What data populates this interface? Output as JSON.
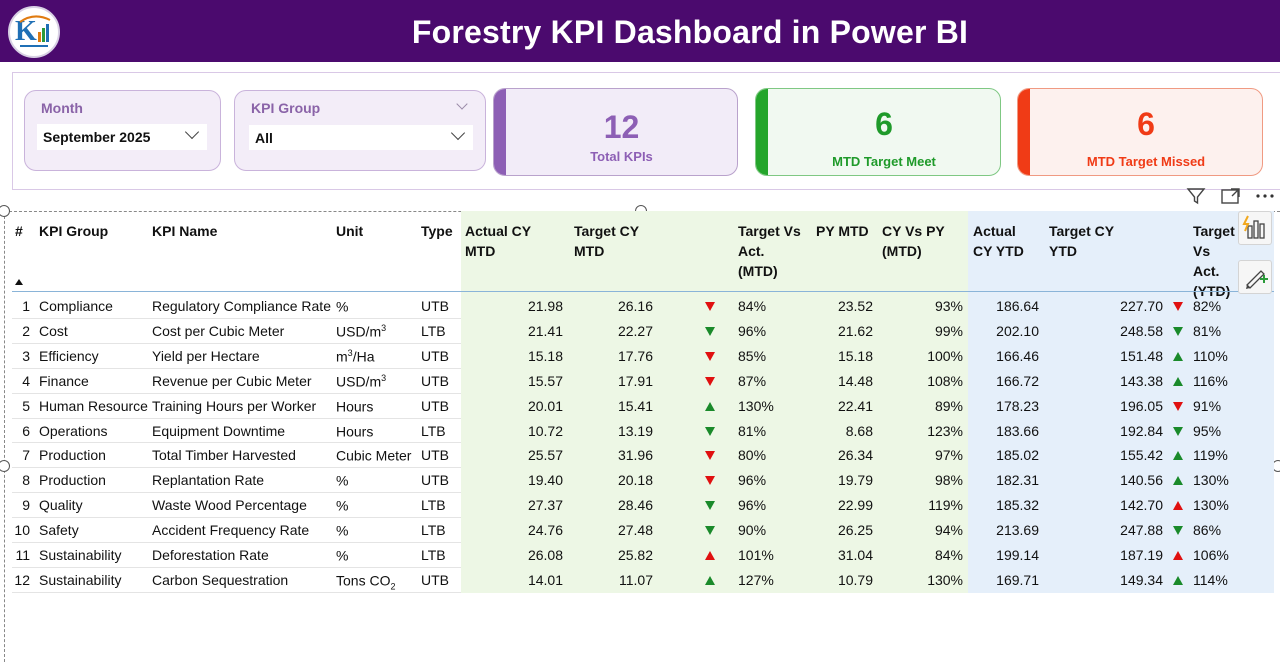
{
  "header": {
    "title": "Forestry KPI Dashboard in Power BI"
  },
  "slicers": {
    "month": {
      "label": "Month",
      "value": "September 2025"
    },
    "kpi_group": {
      "label": "KPI Group",
      "value": "All"
    }
  },
  "cards": [
    {
      "value": "12",
      "caption": "Total KPIs",
      "color": "#8d5fb5"
    },
    {
      "value": "6",
      "caption": "MTD Target Meet",
      "color": "#24a52b"
    },
    {
      "value": "6",
      "caption": "MTD Target Missed",
      "color": "#f03b16"
    }
  ],
  "icons": [
    "filter-icon",
    "focus-mode-icon",
    "more-options-icon",
    "visualization-icon",
    "format-brush-icon",
    "sort-ascending-icon"
  ],
  "table": {
    "columns": {
      "num": "#",
      "group": "KPI Group",
      "name": "KPI Name",
      "unit": "Unit",
      "type": "Type",
      "act_mtd": [
        "Actual CY",
        "MTD"
      ],
      "tgt_mtd": [
        "Target CY",
        "MTD"
      ],
      "tva_mtd": [
        "Target Vs",
        "Act.",
        "(MTD)"
      ],
      "py_mtd": "PY MTD",
      "cvp_mtd": [
        "CY Vs PY",
        "(MTD)"
      ],
      "act_ytd": [
        "Actual",
        "CY YTD"
      ],
      "tgt_ytd": [
        "Target CY",
        "YTD"
      ],
      "tva_ytd": [
        "Target",
        "Vs Act.",
        "(YTD)"
      ]
    },
    "rows": [
      {
        "num": "1",
        "group": "Compliance",
        "name": "Regulatory Compliance Rate",
        "unit": "%",
        "unit_sup": "",
        "unit_sub": "",
        "unit_tail": "",
        "type": "UTB",
        "act_mtd": "21.98",
        "tgt_mtd": "26.16",
        "mtd_dir": "down-red",
        "tva_mtd": "84%",
        "py_mtd": "23.52",
        "cvp_mtd": "93%",
        "act_ytd": "186.64",
        "tgt_ytd": "227.70",
        "ytd_dir": "down-red",
        "tva_ytd": "82%"
      },
      {
        "num": "2",
        "group": "Cost",
        "name": "Cost per Cubic Meter",
        "unit": "USD/m",
        "unit_sup": "3",
        "unit_sub": "",
        "unit_tail": "",
        "type": "LTB",
        "act_mtd": "21.41",
        "tgt_mtd": "22.27",
        "mtd_dir": "down-green",
        "tva_mtd": "96%",
        "py_mtd": "21.62",
        "cvp_mtd": "99%",
        "act_ytd": "202.10",
        "tgt_ytd": "248.58",
        "ytd_dir": "down-green",
        "tva_ytd": "81%"
      },
      {
        "num": "3",
        "group": "Efficiency",
        "name": "Yield per Hectare",
        "unit": "m",
        "unit_sup": "3",
        "unit_sub": "",
        "unit_tail": "/Ha",
        "type": "UTB",
        "act_mtd": "15.18",
        "tgt_mtd": "17.76",
        "mtd_dir": "down-red",
        "tva_mtd": "85%",
        "py_mtd": "15.18",
        "cvp_mtd": "100%",
        "act_ytd": "166.46",
        "tgt_ytd": "151.48",
        "ytd_dir": "up",
        "tva_ytd": "110%"
      },
      {
        "num": "4",
        "group": "Finance",
        "name": "Revenue per Cubic Meter",
        "unit": "USD/m",
        "unit_sup": "3",
        "unit_sub": "",
        "unit_tail": "",
        "type": "UTB",
        "act_mtd": "15.57",
        "tgt_mtd": "17.91",
        "mtd_dir": "down-red",
        "tva_mtd": "87%",
        "py_mtd": "14.48",
        "cvp_mtd": "108%",
        "act_ytd": "166.72",
        "tgt_ytd": "143.38",
        "ytd_dir": "up",
        "tva_ytd": "116%"
      },
      {
        "num": "5",
        "group": "Human Resource",
        "name": "Training Hours per Worker",
        "unit": "Hours",
        "unit_sup": "",
        "unit_sub": "",
        "unit_tail": "",
        "type": "UTB",
        "act_mtd": "20.01",
        "tgt_mtd": "15.41",
        "mtd_dir": "up",
        "tva_mtd": "130%",
        "py_mtd": "22.41",
        "cvp_mtd": "89%",
        "act_ytd": "178.23",
        "tgt_ytd": "196.05",
        "ytd_dir": "down-red",
        "tva_ytd": "91%"
      },
      {
        "num": "6",
        "group": "Operations",
        "name": "Equipment Downtime",
        "unit": "Hours",
        "unit_sup": "",
        "unit_sub": "",
        "unit_tail": "",
        "type": "LTB",
        "act_mtd": "10.72",
        "tgt_mtd": "13.19",
        "mtd_dir": "down-green",
        "tva_mtd": "81%",
        "py_mtd": "8.68",
        "cvp_mtd": "123%",
        "act_ytd": "183.66",
        "tgt_ytd": "192.84",
        "ytd_dir": "down-green",
        "tva_ytd": "95%"
      },
      {
        "num": "7",
        "group": "Production",
        "name": "Total Timber Harvested",
        "unit": "Cubic Meter",
        "unit_sup": "",
        "unit_sub": "",
        "unit_tail": "",
        "type": "UTB",
        "act_mtd": "25.57",
        "tgt_mtd": "31.96",
        "mtd_dir": "down-red",
        "tva_mtd": "80%",
        "py_mtd": "26.34",
        "cvp_mtd": "97%",
        "act_ytd": "185.02",
        "tgt_ytd": "155.42",
        "ytd_dir": "up",
        "tva_ytd": "119%"
      },
      {
        "num": "8",
        "group": "Production",
        "name": "Replantation Rate",
        "unit": "%",
        "unit_sup": "",
        "unit_sub": "",
        "unit_tail": "",
        "type": "UTB",
        "act_mtd": "19.40",
        "tgt_mtd": "20.18",
        "mtd_dir": "down-red",
        "tva_mtd": "96%",
        "py_mtd": "19.79",
        "cvp_mtd": "98%",
        "act_ytd": "182.31",
        "tgt_ytd": "140.56",
        "ytd_dir": "up",
        "tva_ytd": "130%"
      },
      {
        "num": "9",
        "group": "Quality",
        "name": "Waste Wood Percentage",
        "unit": "%",
        "unit_sup": "",
        "unit_sub": "",
        "unit_tail": "",
        "type": "LTB",
        "act_mtd": "27.37",
        "tgt_mtd": "28.46",
        "mtd_dir": "down-green",
        "tva_mtd": "96%",
        "py_mtd": "22.99",
        "cvp_mtd": "119%",
        "act_ytd": "185.32",
        "tgt_ytd": "142.70",
        "ytd_dir": "up-red",
        "tva_ytd": "130%"
      },
      {
        "num": "10",
        "group": "Safety",
        "name": "Accident Frequency Rate",
        "unit": "%",
        "unit_sup": "",
        "unit_sub": "",
        "unit_tail": "",
        "type": "LTB",
        "act_mtd": "24.76",
        "tgt_mtd": "27.48",
        "mtd_dir": "down-green",
        "tva_mtd": "90%",
        "py_mtd": "26.25",
        "cvp_mtd": "94%",
        "act_ytd": "213.69",
        "tgt_ytd": "247.88",
        "ytd_dir": "down-green",
        "tva_ytd": "86%"
      },
      {
        "num": "11",
        "group": "Sustainability",
        "name": "Deforestation Rate",
        "unit": "%",
        "unit_sup": "",
        "unit_sub": "",
        "unit_tail": "",
        "type": "LTB",
        "act_mtd": "26.08",
        "tgt_mtd": "25.82",
        "mtd_dir": "up-red",
        "tva_mtd": "101%",
        "py_mtd": "31.04",
        "cvp_mtd": "84%",
        "act_ytd": "199.14",
        "tgt_ytd": "187.19",
        "ytd_dir": "up-red",
        "tva_ytd": "106%"
      },
      {
        "num": "12",
        "group": "Sustainability",
        "name": "Carbon Sequestration",
        "unit": "Tons CO",
        "unit_sup": "",
        "unit_sub": "2",
        "unit_tail": "",
        "type": "UTB",
        "act_mtd": "14.01",
        "tgt_mtd": "11.07",
        "mtd_dir": "up",
        "tva_mtd": "127%",
        "py_mtd": "10.79",
        "cvp_mtd": "130%",
        "act_ytd": "169.71",
        "tgt_ytd": "149.34",
        "ytd_dir": "up",
        "tva_ytd": "114%"
      }
    ]
  }
}
